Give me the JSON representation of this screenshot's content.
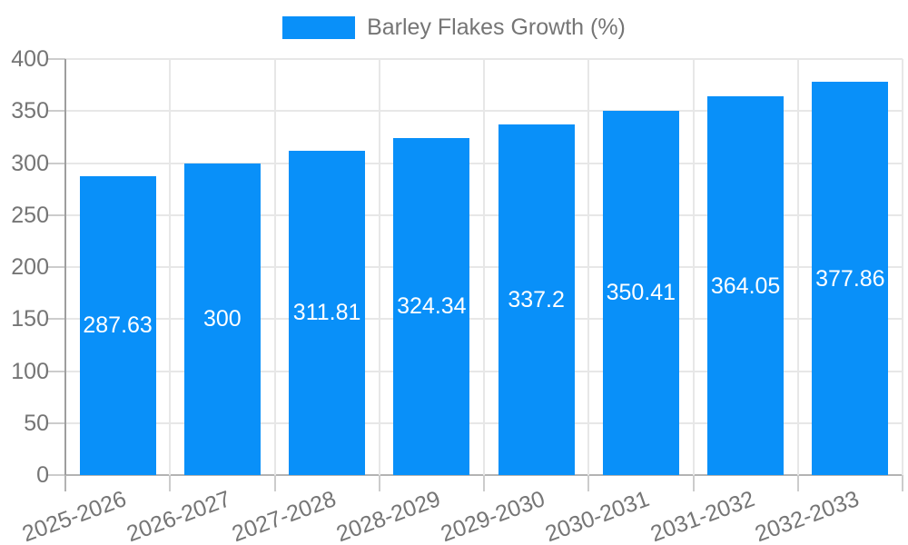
{
  "chart_data": {
    "type": "bar",
    "title": "Barley Flakes Growth (%)",
    "categories": [
      "2025-2026",
      "2026-2027",
      "2027-2028",
      "2028-2029",
      "2029-2030",
      "2030-2031",
      "2031-2032",
      "2032-2033"
    ],
    "series": [
      {
        "name": "Barley Flakes Growth (%)",
        "values": [
          287.63,
          300,
          311.81,
          324.34,
          337.2,
          350.41,
          364.05,
          377.86
        ]
      }
    ],
    "value_labels": [
      "287.63",
      "300",
      "311.81",
      "324.34",
      "337.2",
      "350.41",
      "364.05",
      "377.86"
    ],
    "xlabel": "",
    "ylabel": "",
    "ylim": [
      0,
      400
    ],
    "y_ticks": [
      0,
      50,
      100,
      150,
      200,
      250,
      300,
      350,
      400
    ],
    "grid": true,
    "legend_position": "top",
    "x_label_rotation_deg": -20,
    "bar_color": "#0990f9",
    "value_label_color": "#ffffff"
  },
  "legend": {
    "label": "Barley Flakes Growth (%)"
  },
  "colors": {
    "background": "#ffffff",
    "axis_line": "#9e9e9e",
    "baseline": "#b3b3b3",
    "gridline": "#e7e7e7",
    "tick": "#cccccc",
    "axis_text": "#757575"
  }
}
